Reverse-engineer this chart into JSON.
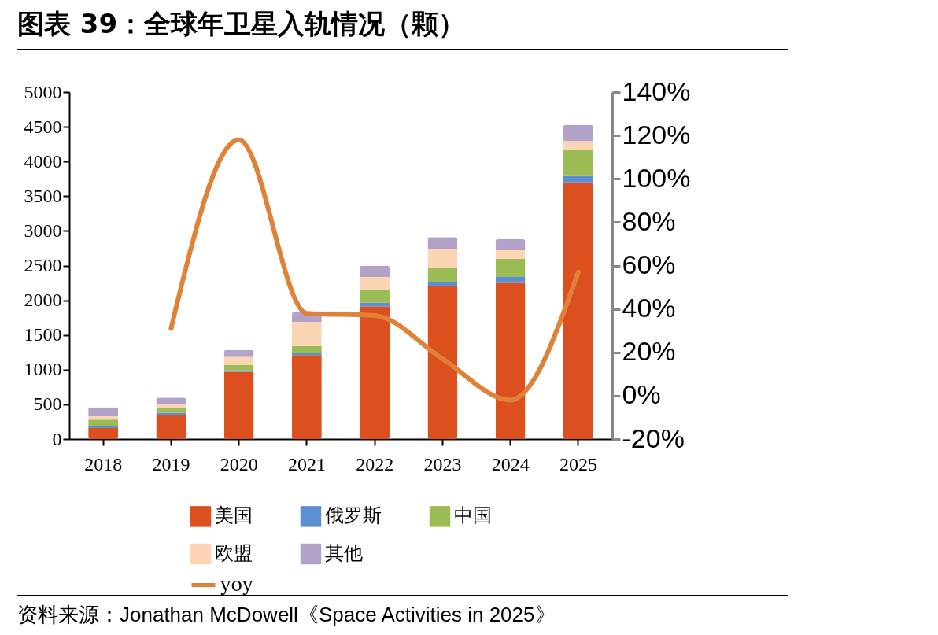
{
  "chart_data": {
    "type": "bar",
    "title": "图表 39：全球年卫星入轨情况（颗）",
    "stacked": true,
    "legend": "bottom",
    "grid": false,
    "categories": [
      "2018",
      "2019",
      "2020",
      "2021",
      "2022",
      "2023",
      "2024",
      "2025"
    ],
    "series": [
      {
        "name": "美国",
        "color": "#dc4f1f",
        "values": [
          160,
          350,
          970,
          1210,
          1910,
          2200,
          2250,
          3700
        ]
      },
      {
        "name": "俄罗斯",
        "color": "#5a8fd4",
        "values": [
          25,
          30,
          23,
          30,
          55,
          65,
          85,
          90
        ]
      },
      {
        "name": "中国",
        "color": "#9bbb55",
        "values": [
          95,
          68,
          72,
          100,
          180,
          205,
          265,
          370
        ]
      },
      {
        "name": "欧盟",
        "color": "#fcd5b5",
        "values": [
          50,
          53,
          121,
          350,
          190,
          265,
          120,
          135
        ]
      },
      {
        "name": "其他",
        "color": "#b3a2c7",
        "values": [
          130,
          98,
          98,
          140,
          165,
          175,
          160,
          235
        ]
      },
      {
        "name": "yoy",
        "type": "line",
        "axis": "y2",
        "color": "#df8136",
        "values": [
          null,
          31,
          118,
          38,
          37,
          17,
          -2,
          57
        ]
      }
    ],
    "ylim": [
      0,
      5000
    ],
    "yticks": [
      0,
      500,
      1000,
      1500,
      2000,
      2500,
      3000,
      3500,
      4000,
      4500,
      5000
    ],
    "y2lim": [
      -20,
      140
    ],
    "y2ticks": [
      {
        "value": -20,
        "label": "-20%"
      },
      {
        "value": 0,
        "label": "0%"
      },
      {
        "value": 20,
        "label": "20%"
      },
      {
        "value": 40,
        "label": "40%"
      },
      {
        "value": 60,
        "label": "60%"
      },
      {
        "value": 80,
        "label": "80%"
      },
      {
        "value": 100,
        "label": "100%"
      },
      {
        "value": 120,
        "label": "120%"
      },
      {
        "value": 140,
        "label": "140%"
      }
    ],
    "annotations": [
      "资料来源：Jonathan McDowell《Space Activities in 2025》"
    ]
  }
}
